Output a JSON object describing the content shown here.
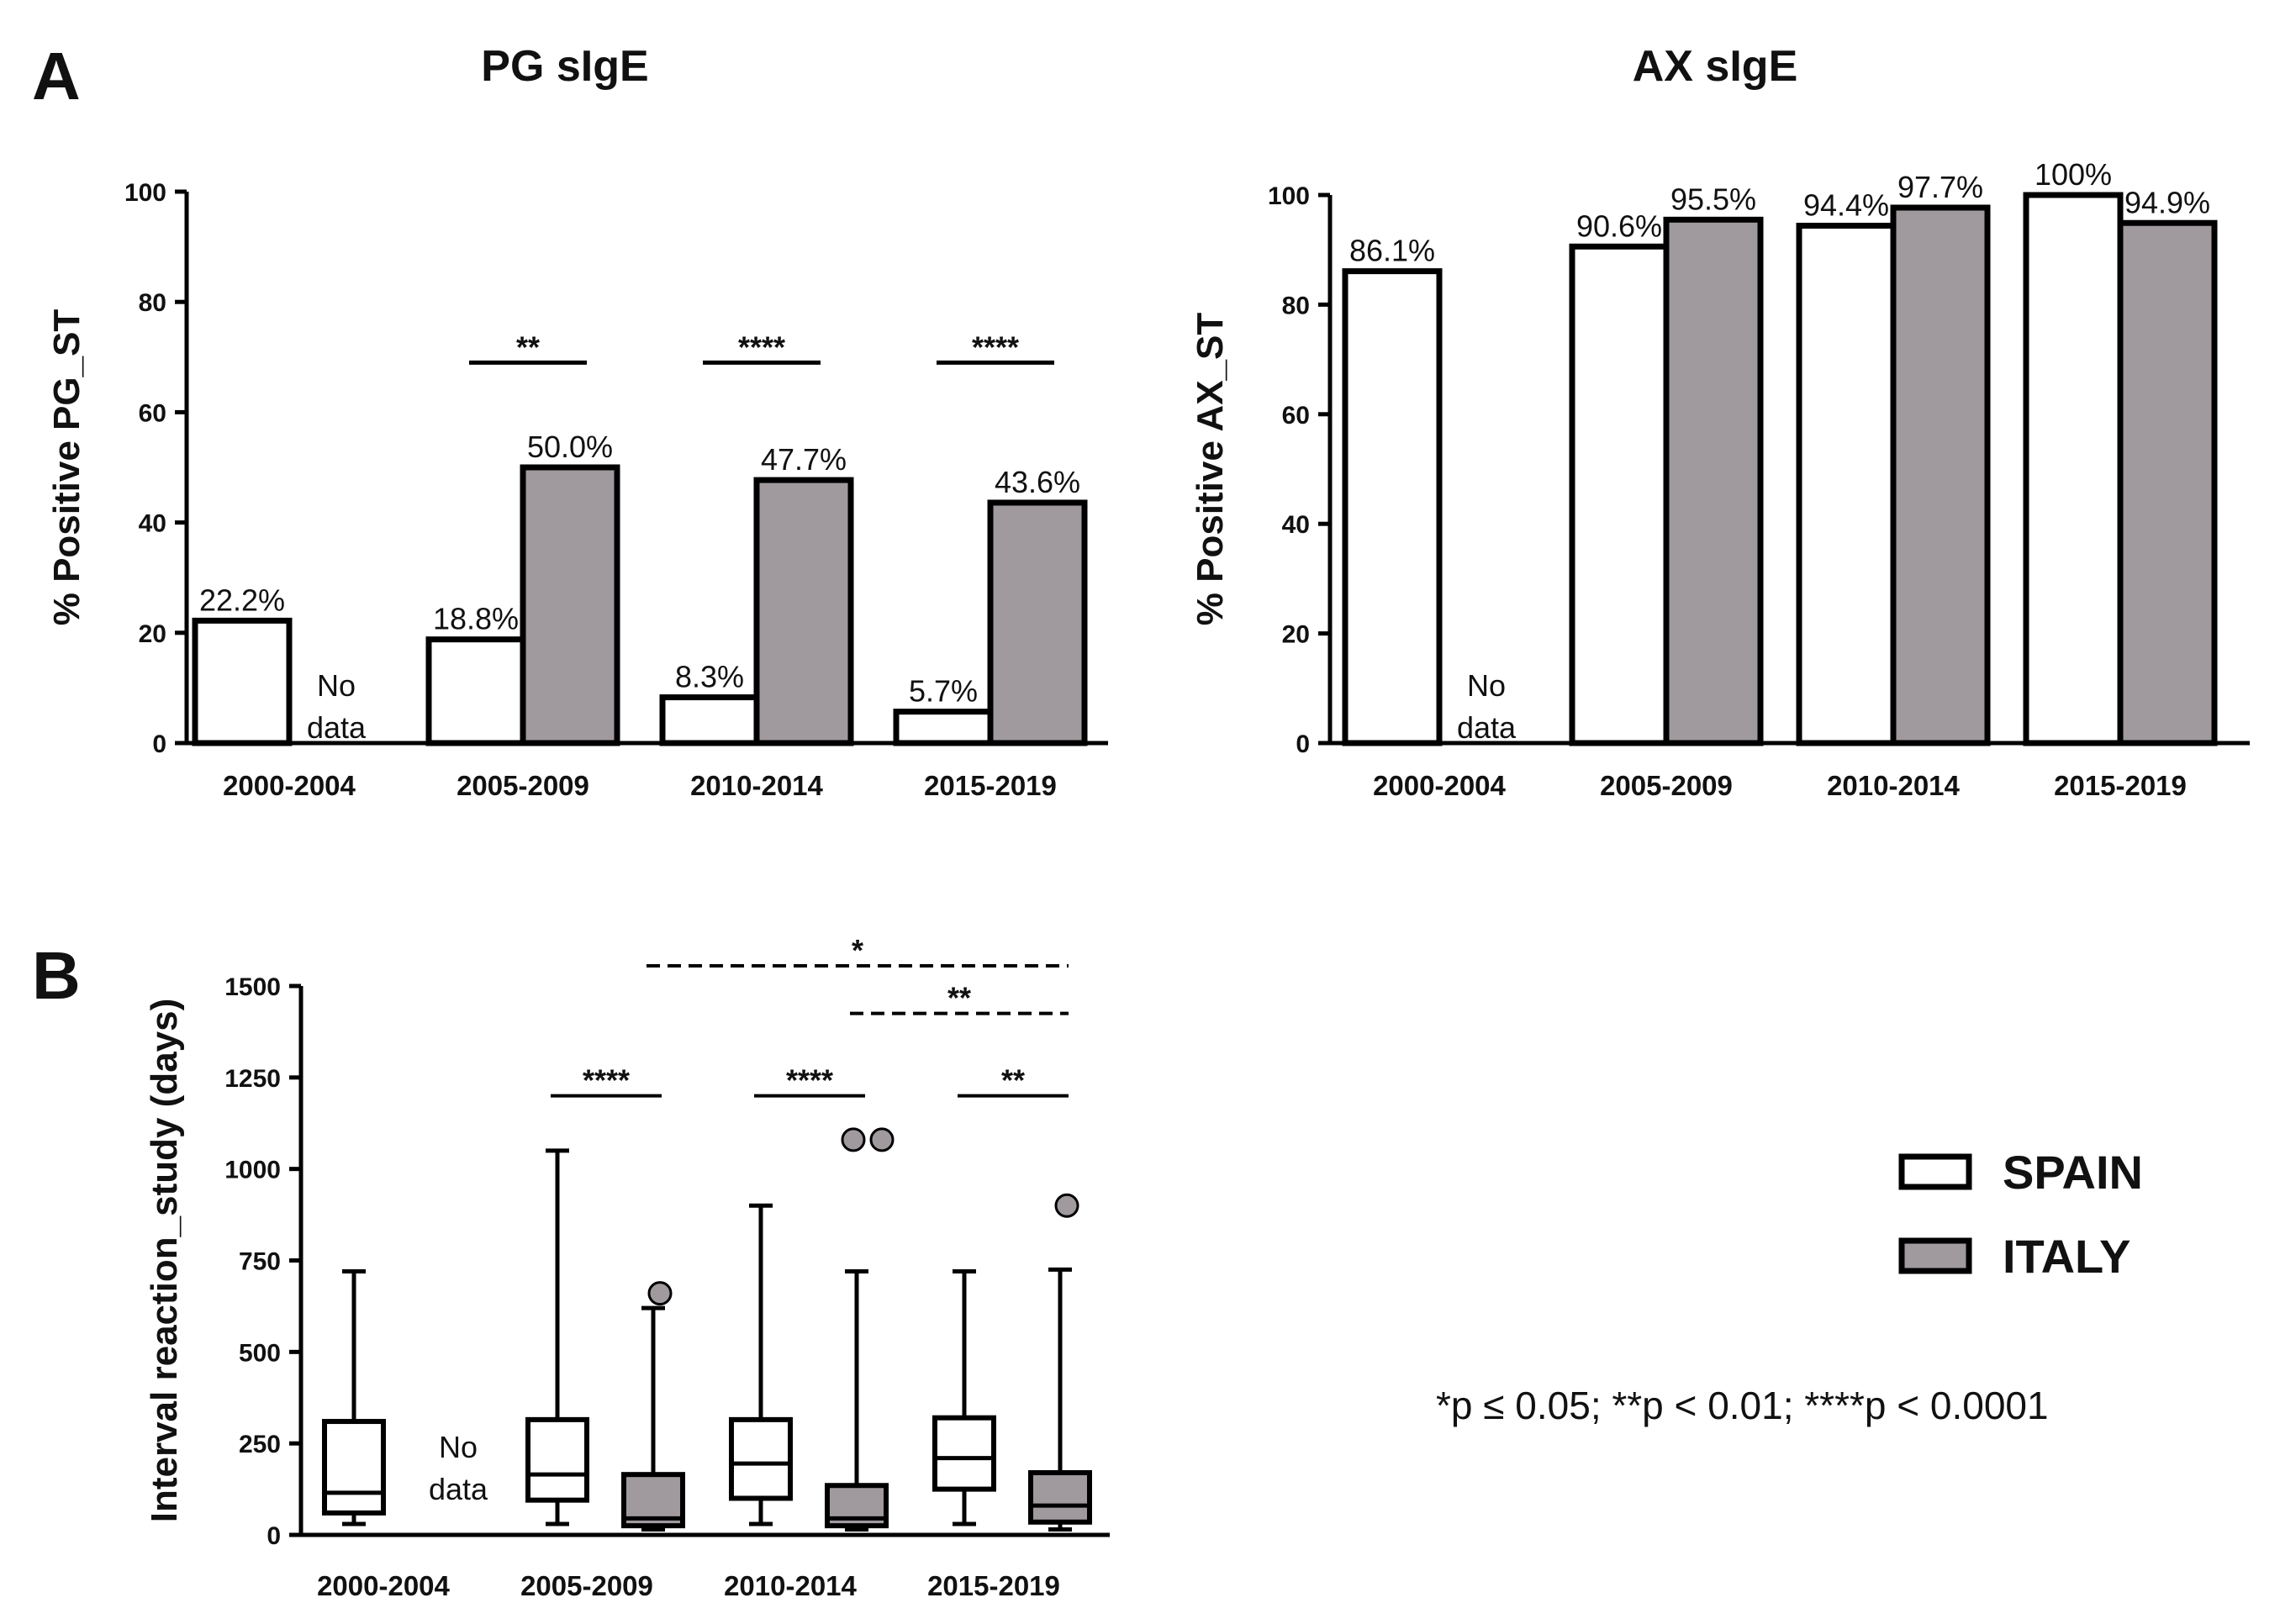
{
  "panels": {
    "A": "A",
    "B": "B"
  },
  "no_data_line1": "No",
  "no_data_line2": "data",
  "legend": {
    "spain": {
      "label": "SPAIN",
      "color": "#ffffff"
    },
    "italy": {
      "label": "ITALY",
      "color": "#a09a9f"
    }
  },
  "footnote": "*p ≤ 0.05; **p < 0.01; ****p < 0.0001",
  "chart_data": [
    {
      "id": "pg",
      "type": "bar",
      "title": "PG sIgE",
      "ylabel": "% Positive PG_ST",
      "xlabel": "",
      "ylim": [
        0,
        100
      ],
      "yticks": [
        0,
        20,
        40,
        60,
        80,
        100
      ],
      "categories": [
        "2000-2004",
        "2005-2009",
        "2010-2014",
        "2015-2019"
      ],
      "series": [
        {
          "name": "SPAIN",
          "values": [
            22.2,
            18.8,
            8.3,
            5.7
          ],
          "labels": [
            "22.2%",
            "18.8%",
            "8.3%",
            "5.7%"
          ]
        },
        {
          "name": "ITALY",
          "values": [
            null,
            50.0,
            47.7,
            43.6
          ],
          "labels": [
            "",
            "50.0%",
            "47.7%",
            "43.6%"
          ]
        }
      ],
      "significance": [
        {
          "category": 1,
          "label": "**",
          "y": 69
        },
        {
          "category": 2,
          "label": "****",
          "y": 69
        },
        {
          "category": 3,
          "label": "****",
          "y": 69
        }
      ]
    },
    {
      "id": "ax",
      "type": "bar",
      "title": "AX sIgE",
      "ylabel": "% Positive AX_ST",
      "xlabel": "",
      "ylim": [
        0,
        100
      ],
      "yticks": [
        0,
        20,
        40,
        60,
        80,
        100
      ],
      "categories": [
        "2000-2004",
        "2005-2009",
        "2010-2014",
        "2015-2019"
      ],
      "series": [
        {
          "name": "SPAIN",
          "values": [
            86.1,
            90.6,
            94.4,
            100
          ],
          "labels": [
            "86.1%",
            "90.6%",
            "94.4%",
            "100%"
          ]
        },
        {
          "name": "ITALY",
          "values": [
            null,
            95.5,
            97.7,
            94.9
          ],
          "labels": [
            "",
            "95.5%",
            "97.7%",
            "94.9%"
          ]
        }
      ],
      "significance": []
    },
    {
      "id": "box",
      "type": "box",
      "title": "",
      "ylabel": "Interval reaction_study (days)",
      "xlabel": "",
      "ylim": [
        0,
        1500
      ],
      "yticks": [
        0,
        250,
        500,
        750,
        1000,
        1250,
        1500
      ],
      "categories": [
        "2000-2004",
        "2005-2009",
        "2010-2014",
        "2015-2019"
      ],
      "series": [
        {
          "name": "SPAIN",
          "boxes": [
            {
              "min": 30,
              "q1": 60,
              "median": 115,
              "q3": 310,
              "max": 720,
              "outliers": []
            },
            {
              "min": 30,
              "q1": 95,
              "median": 165,
              "q3": 315,
              "max": 1050,
              "outliers": []
            },
            {
              "min": 30,
              "q1": 100,
              "median": 195,
              "q3": 315,
              "max": 900,
              "outliers": []
            },
            {
              "min": 30,
              "q1": 125,
              "median": 210,
              "q3": 320,
              "max": 720,
              "outliers": []
            }
          ]
        },
        {
          "name": "ITALY",
          "boxes": [
            null,
            {
              "min": 15,
              "q1": 25,
              "median": 45,
              "q3": 165,
              "max": 620,
              "outliers": [
                660
              ]
            },
            {
              "min": 15,
              "q1": 25,
              "median": 45,
              "q3": 135,
              "max": 720,
              "outliers": [
                1080,
                1080
              ]
            },
            {
              "min": 15,
              "q1": 35,
              "median": 80,
              "q3": 170,
              "max": 725,
              "outliers": [
                900
              ]
            }
          ]
        }
      ],
      "significance": [
        {
          "from": 1.0,
          "to": 1.5,
          "label": "****",
          "y": 1200,
          "dashed": false
        },
        {
          "from": 2.0,
          "to": 2.5,
          "label": "****",
          "y": 1200,
          "dashed": false
        },
        {
          "from": 3.0,
          "to": 3.5,
          "label": "**",
          "y": 1200,
          "dashed": false
        },
        {
          "from": 1.5,
          "to": 3.5,
          "label": "*",
          "y": 1555,
          "dashed": true
        },
        {
          "from": 2.5,
          "to": 3.5,
          "label": "**",
          "y": 1425,
          "dashed": true
        }
      ]
    }
  ]
}
